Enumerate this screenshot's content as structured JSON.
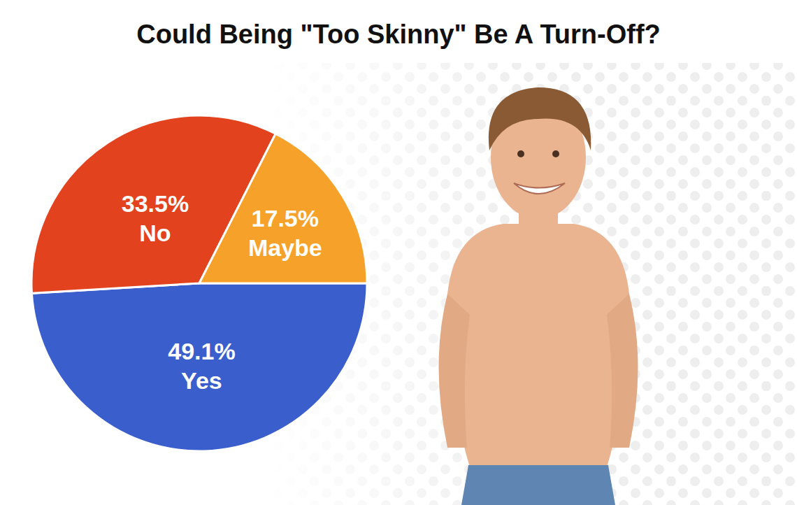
{
  "chart_data": {
    "type": "pie",
    "title": "Could Being \"Too Skinny\" Be A Turn-Off?",
    "categories": [
      "Yes",
      "No",
      "Maybe"
    ],
    "values": [
      49.1,
      33.5,
      17.5
    ],
    "value_labels": [
      "49.1%",
      "33.5%",
      "17.5%"
    ],
    "colors": [
      "#3a5fcd",
      "#e3421f",
      "#f6a12a"
    ],
    "data_labels": true
  }
}
